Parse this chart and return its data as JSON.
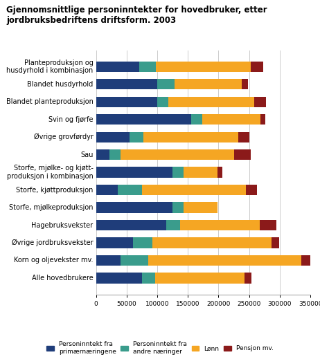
{
  "title": "Gjennomsnittlige personinntekter for hovedbruker, etter jordbruksbedriftens driftsform. 2003",
  "categories": [
    "Planteproduksjon og\nhusdyrhold i kombinasjon",
    "Blandet husdyrhold",
    "Blandet planteproduksjon",
    "Svin og fjørfe",
    "Øvrige grovførdyr",
    "Sau",
    "Storfe, mjølke- og kjøtt-\nproduksjon i kombinasjon",
    "Storfe, kjøttproduksjon",
    "Storfe, mjølkeproduksjon",
    "Hagebruksvekster",
    "Øvrige jordbruksvekster",
    "Korn og oljevekster mv.",
    "Alle hovedbrukere"
  ],
  "data": {
    "primar": [
      70000,
      100000,
      100000,
      155000,
      55000,
      22000,
      125000,
      35000,
      125000,
      115000,
      60000,
      40000,
      75000
    ],
    "andre": [
      28000,
      28000,
      18000,
      18000,
      22000,
      18000,
      18000,
      40000,
      18000,
      22000,
      32000,
      45000,
      22000
    ],
    "lonn": [
      155000,
      110000,
      140000,
      95000,
      155000,
      185000,
      55000,
      170000,
      55000,
      130000,
      195000,
      250000,
      145000
    ],
    "pensjon": [
      20000,
      10000,
      20000,
      8000,
      18000,
      28000,
      8000,
      18000,
      0,
      28000,
      12000,
      22000,
      12000
    ]
  },
  "colors": {
    "primar": "#1F3D7A",
    "andre": "#3A9C8C",
    "lonn": "#F5A623",
    "pensjon": "#8B1A1A"
  },
  "legend_labels": [
    "Personinntekt fra\nprimærnæringene",
    "Personinntekt fra\nandre næringer",
    "Lønn",
    "Pensjon mv."
  ],
  "xlim": [
    0,
    350000
  ],
  "xticks": [
    0,
    50000,
    100000,
    150000,
    200000,
    250000,
    300000,
    350000
  ],
  "xtick_labels": [
    "0",
    "50000",
    "100000",
    "150000",
    "200000",
    "250000",
    "300000",
    "350000"
  ],
  "background_color": "#ffffff"
}
